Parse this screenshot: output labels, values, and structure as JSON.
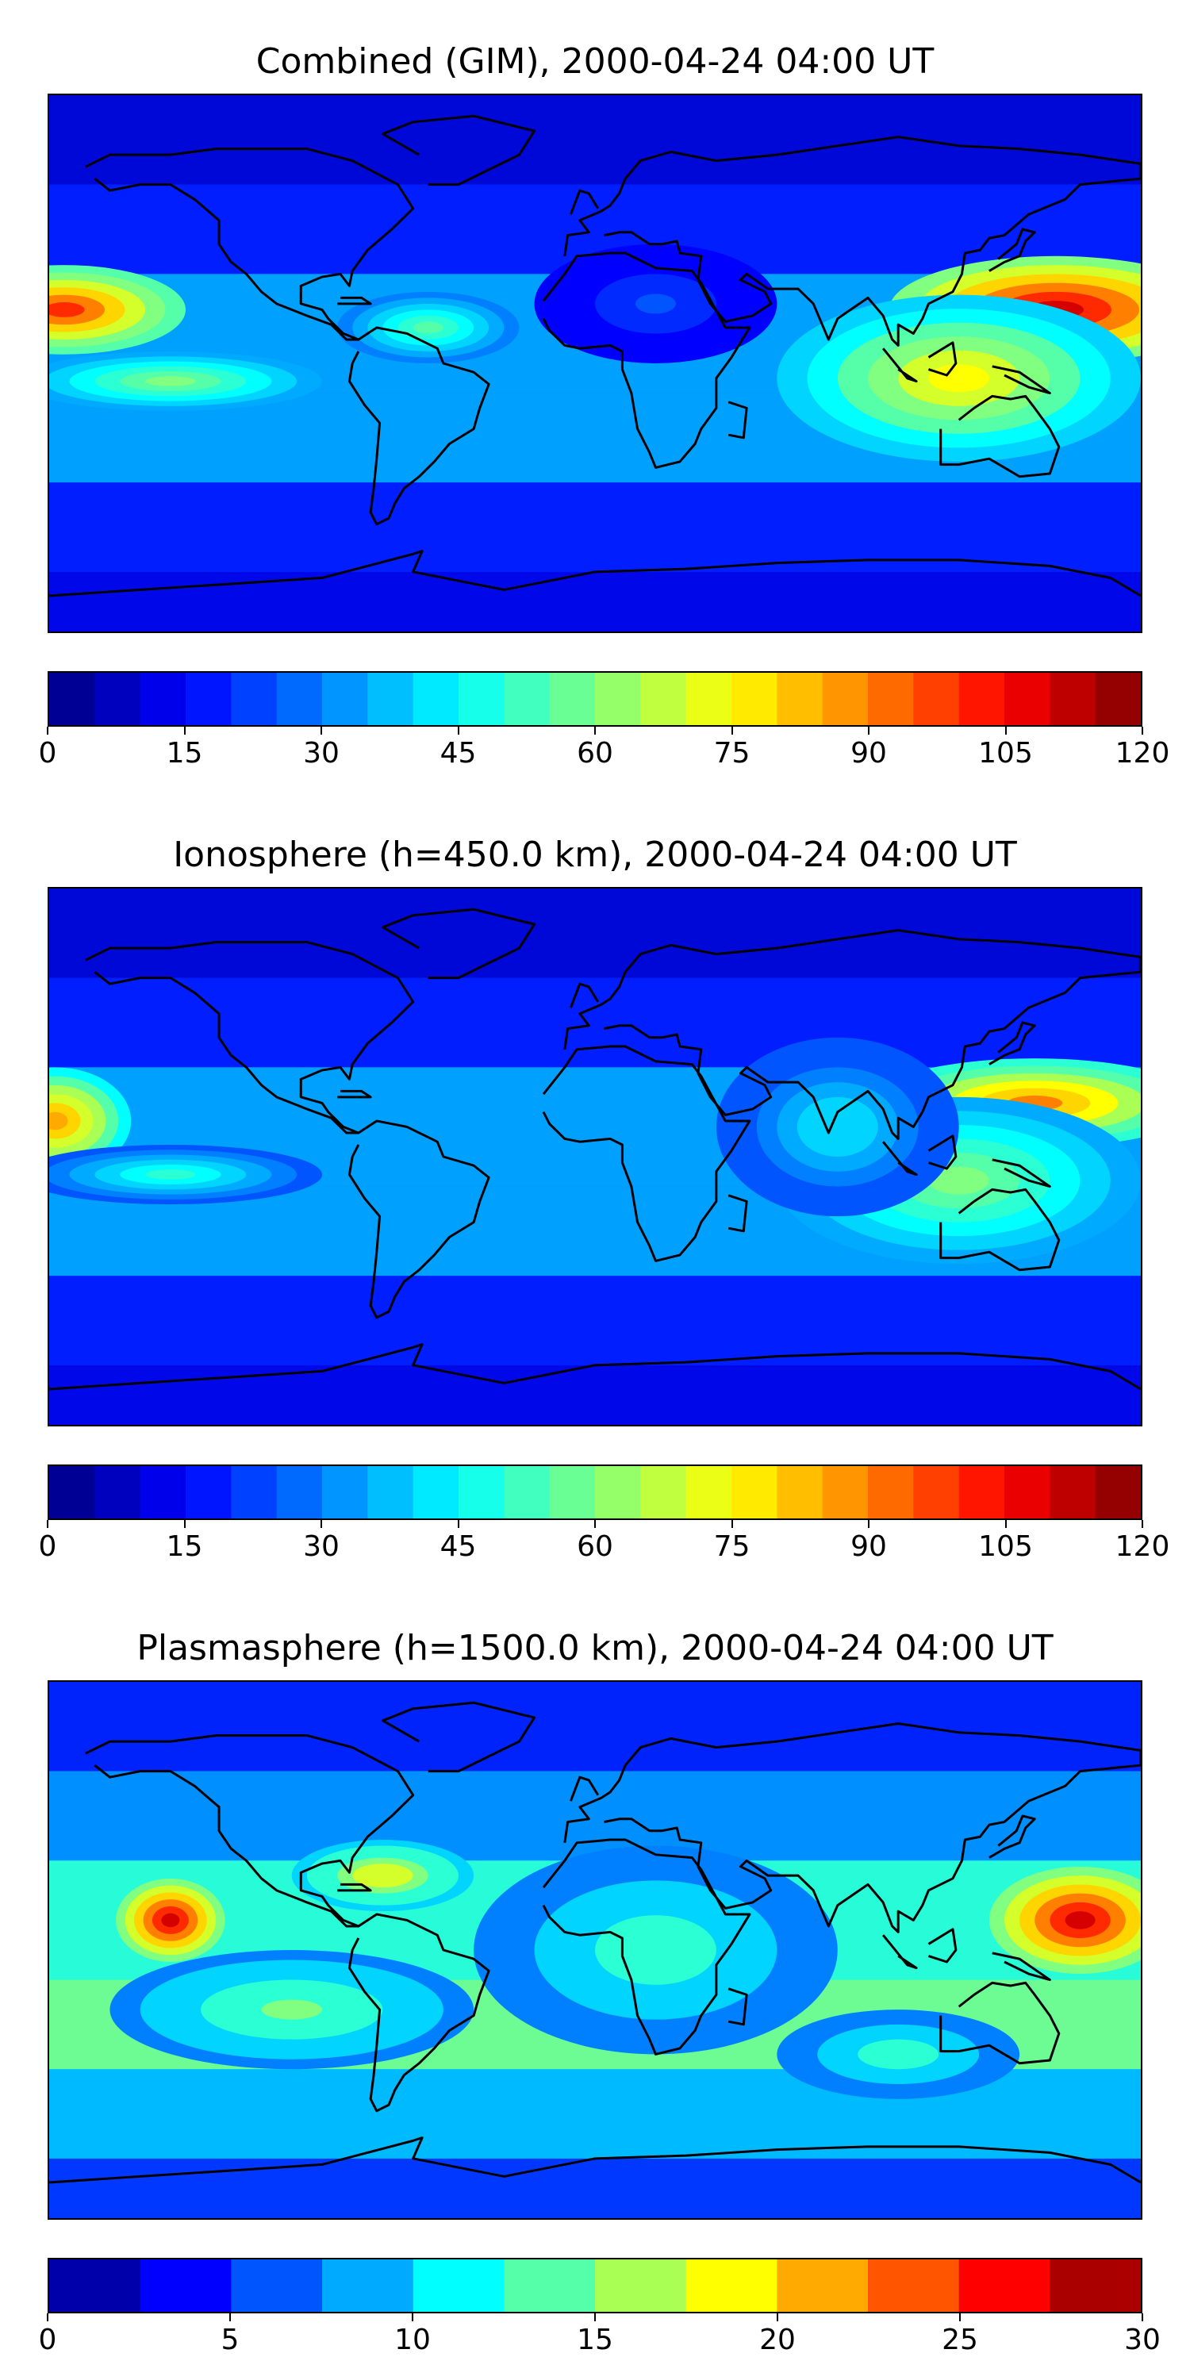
{
  "panels": [
    {
      "title": "Combined (GIM), 2000-04-24 04:00 UT",
      "colorbar_ticks": [
        "0",
        "15",
        "30",
        "45",
        "60",
        "75",
        "90",
        "105",
        "120"
      ],
      "levels": 24,
      "range": [
        0,
        120
      ],
      "blobs": [
        {
          "lon": -175,
          "lat": 18,
          "rx": 40,
          "ry": 15,
          "v": 0.82
        },
        {
          "lon": 152,
          "lat": 18,
          "rx": 55,
          "ry": 18,
          "v": 0.92
        },
        {
          "lon": 120,
          "lat": -5,
          "rx": 60,
          "ry": 28,
          "v": 0.62
        },
        {
          "lon": -140,
          "lat": -6,
          "rx": 50,
          "ry": 10,
          "v": 0.5
        },
        {
          "lon": -55,
          "lat": 12,
          "rx": 30,
          "ry": 12,
          "v": 0.45
        },
        {
          "lon": 20,
          "lat": 20,
          "rx": 40,
          "ry": 20,
          "v": 0.2
        }
      ]
    },
    {
      "title": "Ionosphere  (h=450.0 km), 2000-04-24 04:00 UT",
      "colorbar_ticks": [
        "0",
        "15",
        "30",
        "45",
        "60",
        "75",
        "90",
        "105",
        "120"
      ],
      "levels": 24,
      "range": [
        0,
        120
      ],
      "blobs": [
        {
          "lon": -178,
          "lat": 12,
          "rx": 25,
          "ry": 18,
          "v": 0.72
        },
        {
          "lon": 145,
          "lat": 18,
          "rx": 55,
          "ry": 15,
          "v": 0.75
        },
        {
          "lon": 120,
          "lat": -8,
          "rx": 60,
          "ry": 28,
          "v": 0.5
        },
        {
          "lon": -140,
          "lat": -6,
          "rx": 50,
          "ry": 10,
          "v": 0.4
        },
        {
          "lon": 80,
          "lat": 10,
          "rx": 40,
          "ry": 30,
          "v": 0.35
        }
      ]
    },
    {
      "title": "Plasmasphere (h=1500.0 km), 2000-04-24 04:00 UT",
      "colorbar_ticks": [
        "0",
        "5",
        "10",
        "15",
        "20",
        "25",
        "30"
      ],
      "levels": 12,
      "range": [
        0,
        30
      ],
      "blobs": [
        {
          "lon": -140,
          "lat": 10,
          "rx": 18,
          "ry": 14,
          "v": 0.95
        },
        {
          "lon": 160,
          "lat": 10,
          "rx": 30,
          "ry": 18,
          "v": 0.9
        },
        {
          "lon": -70,
          "lat": 25,
          "rx": 30,
          "ry": 12,
          "v": 0.62
        },
        {
          "lon": 20,
          "lat": 0,
          "rx": 60,
          "ry": 35,
          "v": 0.45
        },
        {
          "lon": -100,
          "lat": -20,
          "rx": 60,
          "ry": 20,
          "v": 0.5
        },
        {
          "lon": 100,
          "lat": -35,
          "rx": 40,
          "ry": 15,
          "v": 0.45
        }
      ]
    }
  ]
}
